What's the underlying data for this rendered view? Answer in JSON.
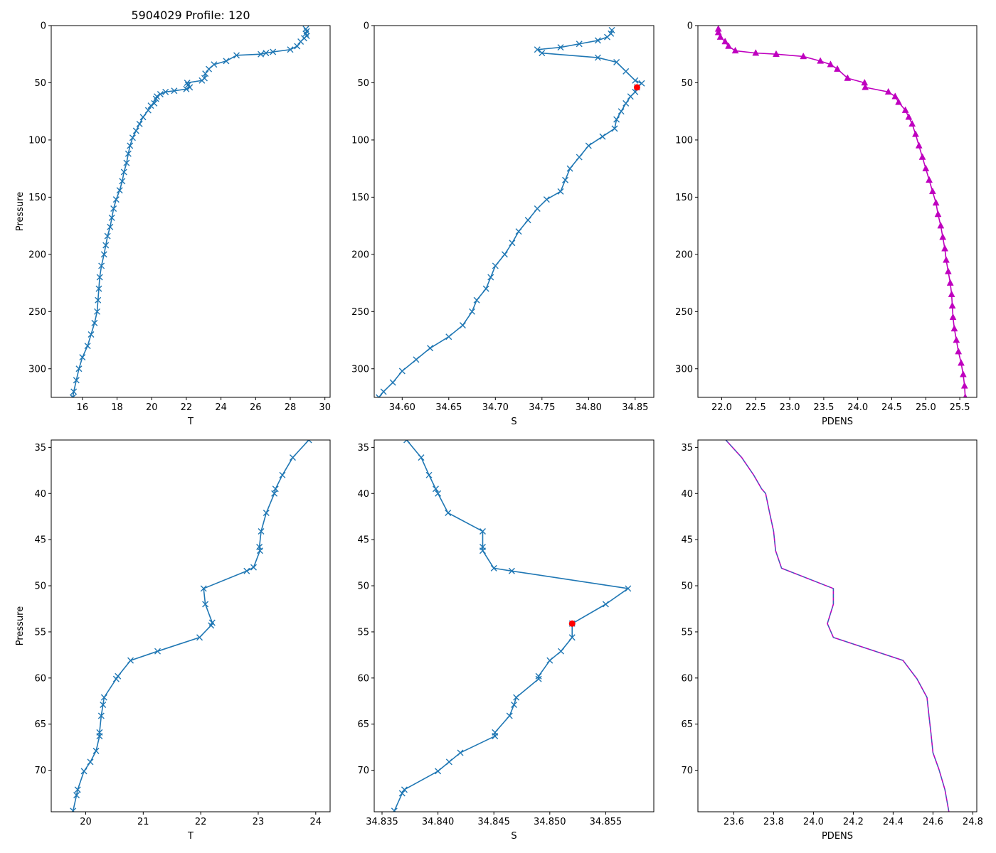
{
  "figure": {
    "title": "5904029 Profile: 120"
  },
  "colors": {
    "line": "#1f77b4",
    "pdens": "#bf00bf",
    "highlight": "#ff0000",
    "axis": "#000000",
    "pdens_dash": "#1f77b4"
  },
  "chart_data": [
    {
      "id": "top-temperature",
      "type": "line",
      "title": "5904029 Profile: 120",
      "xlabel": "T",
      "ylabel": "Pressure",
      "xlim": [
        14.2,
        30.3
      ],
      "ylim": [
        325,
        0
      ],
      "xticks": [
        16,
        18,
        20,
        22,
        24,
        26,
        28,
        30
      ],
      "yticks": [
        0,
        50,
        100,
        150,
        200,
        250,
        300
      ],
      "tick_decimals": 0,
      "marker": "x",
      "series": [
        {
          "name": "T",
          "points": [
            [
              28.9,
              3
            ],
            [
              28.95,
              5
            ],
            [
              28.9,
              7
            ],
            [
              28.95,
              9
            ],
            [
              28.8,
              11
            ],
            [
              28.6,
              14
            ],
            [
              28.4,
              18
            ],
            [
              28.0,
              21
            ],
            [
              27.0,
              23
            ],
            [
              26.6,
              24
            ],
            [
              26.3,
              25
            ],
            [
              24.9,
              26
            ],
            [
              24.3,
              31
            ],
            [
              23.6,
              34
            ],
            [
              23.3,
              38
            ],
            [
              23.1,
              42
            ],
            [
              23.05,
              46
            ],
            [
              22.9,
              48
            ],
            [
              22.05,
              50
            ],
            [
              22.1,
              52
            ],
            [
              22.2,
              54
            ],
            [
              22.0,
              55.5
            ],
            [
              21.3,
              57
            ],
            [
              20.8,
              58
            ],
            [
              20.5,
              60
            ],
            [
              20.3,
              62
            ],
            [
              20.25,
              64
            ],
            [
              20.15,
              68
            ],
            [
              19.95,
              70
            ],
            [
              19.8,
              74
            ],
            [
              19.5,
              80
            ],
            [
              19.3,
              86
            ],
            [
              19.1,
              92
            ],
            [
              18.9,
              98
            ],
            [
              18.75,
              105
            ],
            [
              18.65,
              112
            ],
            [
              18.55,
              120
            ],
            [
              18.4,
              128
            ],
            [
              18.3,
              136
            ],
            [
              18.15,
              144
            ],
            [
              17.95,
              152
            ],
            [
              17.8,
              160
            ],
            [
              17.7,
              168
            ],
            [
              17.6,
              176
            ],
            [
              17.45,
              184
            ],
            [
              17.35,
              192
            ],
            [
              17.25,
              200
            ],
            [
              17.1,
              210
            ],
            [
              17.0,
              220
            ],
            [
              16.95,
              230
            ],
            [
              16.9,
              240
            ],
            [
              16.85,
              250
            ],
            [
              16.7,
              260
            ],
            [
              16.5,
              270
            ],
            [
              16.3,
              280
            ],
            [
              16.0,
              290
            ],
            [
              15.8,
              300
            ],
            [
              15.65,
              310
            ],
            [
              15.5,
              320
            ],
            [
              15.45,
              325
            ]
          ]
        }
      ]
    },
    {
      "id": "top-salinity",
      "type": "line",
      "title": "",
      "xlabel": "S",
      "ylabel": "",
      "xlim": [
        34.57,
        34.87
      ],
      "ylim": [
        325,
        0
      ],
      "xticks": [
        34.6,
        34.65,
        34.7,
        34.75,
        34.8,
        34.85
      ],
      "yticks": [
        0,
        50,
        100,
        150,
        200,
        250,
        300
      ],
      "tick_decimals": 2,
      "marker": "x",
      "series": [
        {
          "name": "S",
          "points": [
            [
              34.825,
              4
            ],
            [
              34.824,
              7
            ],
            [
              34.82,
              10
            ],
            [
              34.81,
              13
            ],
            [
              34.79,
              16
            ],
            [
              34.77,
              19
            ],
            [
              34.745,
              21
            ],
            [
              34.75,
              24
            ],
            [
              34.81,
              28
            ],
            [
              34.83,
              32
            ],
            [
              34.84,
              40
            ],
            [
              34.85,
              48
            ],
            [
              34.857,
              50.5
            ],
            [
              34.852,
              54
            ],
            [
              34.85,
              58
            ],
            [
              34.845,
              62
            ],
            [
              34.84,
              68
            ],
            [
              34.835,
              75
            ],
            [
              34.83,
              82
            ],
            [
              34.828,
              90
            ],
            [
              34.815,
              97
            ],
            [
              34.8,
              105
            ],
            [
              34.79,
              115
            ],
            [
              34.78,
              125
            ],
            [
              34.775,
              135
            ],
            [
              34.77,
              145
            ],
            [
              34.755,
              152
            ],
            [
              34.745,
              160
            ],
            [
              34.735,
              170
            ],
            [
              34.725,
              180
            ],
            [
              34.718,
              190
            ],
            [
              34.71,
              200
            ],
            [
              34.7,
              210
            ],
            [
              34.695,
              220
            ],
            [
              34.69,
              230
            ],
            [
              34.68,
              240
            ],
            [
              34.675,
              250
            ],
            [
              34.665,
              262
            ],
            [
              34.65,
              272
            ],
            [
              34.63,
              282
            ],
            [
              34.615,
              292
            ],
            [
              34.6,
              302
            ],
            [
              34.59,
              312
            ],
            [
              34.58,
              320
            ],
            [
              34.575,
              325
            ]
          ]
        }
      ],
      "highlight": {
        "x": 34.852,
        "y": 54
      }
    },
    {
      "id": "top-pdens",
      "type": "line",
      "title": "",
      "xlabel": "PDENS",
      "ylabel": "",
      "xlim": [
        21.65,
        25.75
      ],
      "ylim": [
        325,
        0
      ],
      "xticks": [
        22.0,
        22.5,
        23.0,
        23.5,
        24.0,
        24.5,
        25.0,
        25.5
      ],
      "yticks": [
        0,
        50,
        100,
        150,
        200,
        250,
        300
      ],
      "tick_decimals": 1,
      "marker": "triangle",
      "series": [
        {
          "name": "PDENS",
          "points": [
            [
              21.95,
              3
            ],
            [
              21.95,
              6
            ],
            [
              21.98,
              10
            ],
            [
              22.05,
              14
            ],
            [
              22.1,
              18
            ],
            [
              22.2,
              22
            ],
            [
              22.5,
              24
            ],
            [
              22.8,
              25
            ],
            [
              23.2,
              27
            ],
            [
              23.45,
              31
            ],
            [
              23.6,
              34
            ],
            [
              23.7,
              38
            ],
            [
              23.85,
              46
            ],
            [
              24.1,
              50
            ],
            [
              24.11,
              54
            ],
            [
              24.45,
              58
            ],
            [
              24.55,
              62
            ],
            [
              24.6,
              67
            ],
            [
              24.7,
              74
            ],
            [
              24.75,
              80
            ],
            [
              24.8,
              86
            ],
            [
              24.85,
              95
            ],
            [
              24.9,
              105
            ],
            [
              24.95,
              115
            ],
            [
              25.0,
              125
            ],
            [
              25.05,
              135
            ],
            [
              25.1,
              145
            ],
            [
              25.15,
              155
            ],
            [
              25.18,
              165
            ],
            [
              25.22,
              175
            ],
            [
              25.25,
              185
            ],
            [
              25.28,
              195
            ],
            [
              25.3,
              205
            ],
            [
              25.33,
              215
            ],
            [
              25.36,
              225
            ],
            [
              25.38,
              235
            ],
            [
              25.39,
              245
            ],
            [
              25.4,
              255
            ],
            [
              25.42,
              265
            ],
            [
              25.45,
              275
            ],
            [
              25.48,
              285
            ],
            [
              25.52,
              295
            ],
            [
              25.55,
              305
            ],
            [
              25.57,
              315
            ],
            [
              25.58,
              325
            ]
          ]
        }
      ]
    },
    {
      "id": "bottom-temperature",
      "type": "line",
      "title": "",
      "xlabel": "T",
      "ylabel": "Pressure",
      "xlim": [
        19.4,
        24.25
      ],
      "ylim": [
        74.5,
        34.2
      ],
      "xticks": [
        20,
        21,
        22,
        23,
        24
      ],
      "yticks": [
        35,
        40,
        45,
        50,
        55,
        60,
        65,
        70
      ],
      "tick_decimals": 0,
      "marker": "x",
      "series": [
        {
          "name": "T",
          "points": [
            [
              23.88,
              34.2
            ],
            [
              23.6,
              36.1
            ],
            [
              23.42,
              38.0
            ],
            [
              23.3,
              39.5
            ],
            [
              23.28,
              40.0
            ],
            [
              23.14,
              42.1
            ],
            [
              23.05,
              44.1
            ],
            [
              23.02,
              45.8
            ],
            [
              23.03,
              46.2
            ],
            [
              22.92,
              48.0
            ],
            [
              22.8,
              48.4
            ],
            [
              22.05,
              50.3
            ],
            [
              22.08,
              52.0
            ],
            [
              22.2,
              54.0
            ],
            [
              22.18,
              54.3
            ],
            [
              21.98,
              55.6
            ],
            [
              21.25,
              57.1
            ],
            [
              20.78,
              58.1
            ],
            [
              20.56,
              59.8
            ],
            [
              20.53,
              60.1
            ],
            [
              20.32,
              62.1
            ],
            [
              20.3,
              62.9
            ],
            [
              20.27,
              64.1
            ],
            [
              20.24,
              65.9
            ],
            [
              20.24,
              66.3
            ],
            [
              20.18,
              67.9
            ],
            [
              20.08,
              69.1
            ],
            [
              19.97,
              70.1
            ],
            [
              19.86,
              72.1
            ],
            [
              19.84,
              72.7
            ],
            [
              19.78,
              74.4
            ]
          ]
        }
      ]
    },
    {
      "id": "bottom-salinity",
      "type": "line",
      "title": "",
      "xlabel": "S",
      "ylabel": "",
      "xlim": [
        34.8343,
        34.8593
      ],
      "ylim": [
        74.5,
        34.2
      ],
      "xticks": [
        34.835,
        34.84,
        34.845,
        34.85,
        34.855
      ],
      "yticks": [
        35,
        40,
        45,
        50,
        55,
        60,
        65,
        70
      ],
      "tick_decimals": 3,
      "marker": "x",
      "series": [
        {
          "name": "S",
          "points": [
            [
              34.8372,
              34.2
            ],
            [
              34.8385,
              36.1
            ],
            [
              34.8392,
              38.0
            ],
            [
              34.8398,
              39.5
            ],
            [
              34.84,
              40.0
            ],
            [
              34.8409,
              42.1
            ],
            [
              34.844,
              44.1
            ],
            [
              34.844,
              45.8
            ],
            [
              34.844,
              46.2
            ],
            [
              34.845,
              48.1
            ],
            [
              34.8466,
              48.4
            ],
            [
              34.857,
              50.3
            ],
            [
              34.855,
              52.0
            ],
            [
              34.852,
              54.1
            ],
            [
              34.852,
              55.6
            ],
            [
              34.851,
              57.1
            ],
            [
              34.85,
              58.1
            ],
            [
              34.849,
              59.8
            ],
            [
              34.849,
              60.1
            ],
            [
              34.847,
              62.1
            ],
            [
              34.8468,
              62.9
            ],
            [
              34.8464,
              64.1
            ],
            [
              34.8451,
              65.9
            ],
            [
              34.8451,
              66.3
            ],
            [
              34.842,
              68.1
            ],
            [
              34.841,
              69.1
            ],
            [
              34.84,
              70.1
            ],
            [
              34.837,
              72.1
            ],
            [
              34.8368,
              72.5
            ],
            [
              34.8361,
              74.4
            ]
          ]
        }
      ],
      "highlight": {
        "x": 34.852,
        "y": 54.1
      }
    },
    {
      "id": "bottom-pdens",
      "type": "line",
      "title": "",
      "xlabel": "PDENS",
      "ylabel": "",
      "xlim": [
        23.42,
        24.82
      ],
      "ylim": [
        74.5,
        34.2
      ],
      "xticks": [
        23.6,
        23.8,
        24.0,
        24.2,
        24.4,
        24.6,
        24.8
      ],
      "yticks": [
        35,
        40,
        45,
        50,
        55,
        60,
        65,
        70
      ],
      "tick_decimals": 1,
      "marker": "none",
      "series": [
        {
          "name": "PDENS",
          "points": [
            [
              23.56,
              34.2
            ],
            [
              23.64,
              36.1
            ],
            [
              23.7,
              38.0
            ],
            [
              23.74,
              39.5
            ],
            [
              23.76,
              40.0
            ],
            [
              23.78,
              42.1
            ],
            [
              23.8,
              44.1
            ],
            [
              23.81,
              46.2
            ],
            [
              23.84,
              48.1
            ],
            [
              24.1,
              50.3
            ],
            [
              24.1,
              52.0
            ],
            [
              24.07,
              54.1
            ],
            [
              24.1,
              55.6
            ],
            [
              24.45,
              58.1
            ],
            [
              24.52,
              60.1
            ],
            [
              24.57,
              62.1
            ],
            [
              24.58,
              64.1
            ],
            [
              24.59,
              66.0
            ],
            [
              24.6,
              68.1
            ],
            [
              24.63,
              69.9
            ],
            [
              24.66,
              72.1
            ],
            [
              24.68,
              74.5
            ]
          ]
        }
      ]
    }
  ]
}
